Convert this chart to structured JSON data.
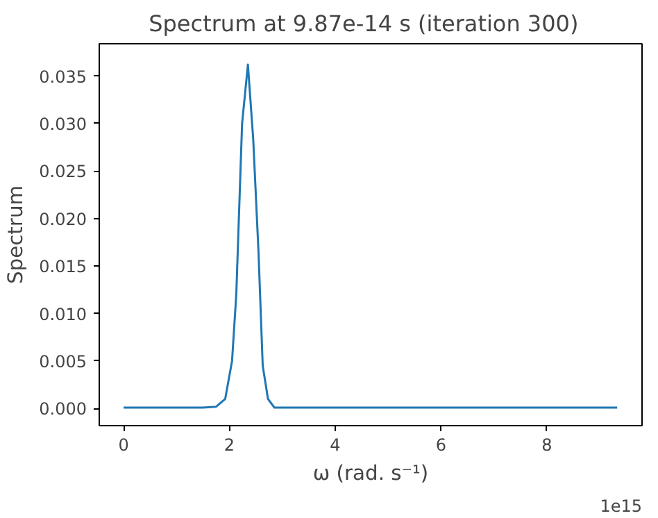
{
  "chart_data": {
    "type": "line",
    "title": "Spectrum at 9.87e-14 s   (iteration 300)",
    "xlabel": "ω (rad. s⁻¹)",
    "ylabel": "Spectrum",
    "annotations": [
      "1e15"
    ],
    "x": [
      0,
      0.5,
      1.0,
      1.5,
      1.75,
      1.92,
      2.05,
      2.13,
      2.24,
      2.35,
      2.45,
      2.55,
      2.63,
      2.73,
      2.85,
      3.0,
      3.5,
      4.0,
      5.0,
      6.0,
      7.0,
      8.0,
      9.33
    ],
    "series": [
      {
        "color": "#1f77b4",
        "values": [
          0.0001,
          0.0001,
          0.0001,
          0.0001,
          0.0002,
          0.001,
          0.005,
          0.012,
          0.03,
          0.0362,
          0.0284,
          0.0165,
          0.0045,
          0.001,
          0.0001,
          0.0001,
          0.0001,
          0.0001,
          0.0001,
          0.0001,
          0.0001,
          0.0001,
          0.0001
        ]
      }
    ],
    "xlim": [
      -0.46,
      9.8
    ],
    "ylim": [
      -0.0018,
      0.0384
    ],
    "xticks": [
      0,
      2,
      4,
      6,
      8
    ],
    "yticks": [
      {
        "value": 0,
        "label": "0.000"
      },
      {
        "value": 0.005,
        "label": "0.005"
      },
      {
        "value": 0.01,
        "label": "0.010"
      },
      {
        "value": 0.015,
        "label": "0.015"
      },
      {
        "value": 0.02,
        "label": "0.020"
      },
      {
        "value": 0.025,
        "label": "0.025"
      },
      {
        "value": 0.03,
        "label": "0.030"
      },
      {
        "value": 0.035,
        "label": "0.035"
      }
    ],
    "grid": false
  }
}
